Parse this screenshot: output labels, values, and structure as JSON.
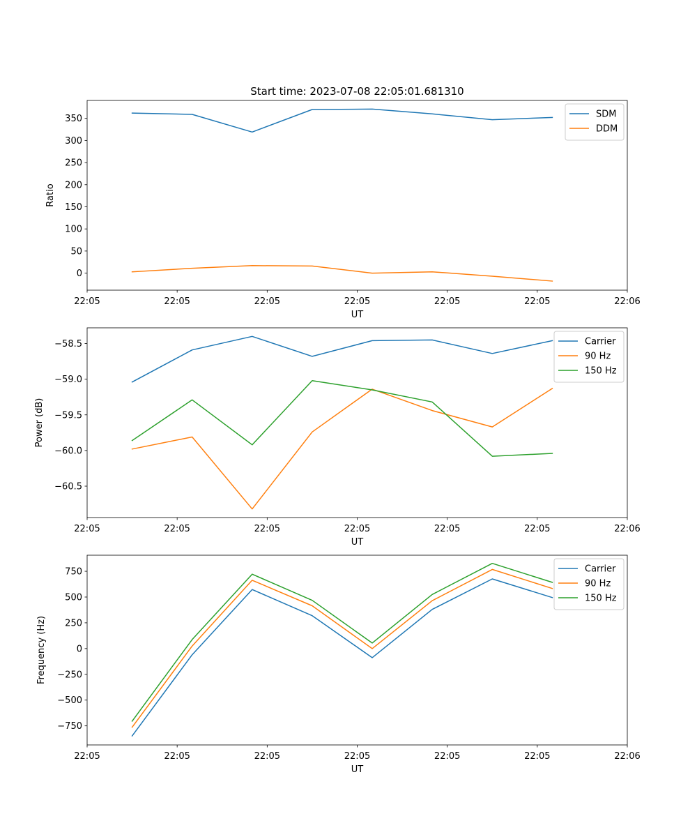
{
  "figure": {
    "title": "Start time: 2023-07-08 22:05:01.681310"
  },
  "chart_data": [
    {
      "type": "line",
      "title": "Start time: 2023-07-08 22:05:01.681310",
      "xlabel": "UT",
      "ylabel": "Ratio",
      "x": [
        0,
        1,
        2,
        3,
        4,
        5,
        6,
        7
      ],
      "xlim": [
        -0.75,
        8.25
      ],
      "xticks": [
        -0.75,
        0.75,
        2.25,
        3.75,
        5.25,
        6.75,
        8.25
      ],
      "xtick_labels": [
        "22:05",
        "22:05",
        "22:05",
        "22:05",
        "22:05",
        "22:05",
        "22:06"
      ],
      "ylim": [
        -38.5,
        390.5
      ],
      "yticks": [
        0,
        50,
        100,
        150,
        200,
        250,
        300,
        350
      ],
      "ytick_labels": [
        "0",
        "50",
        "100",
        "150",
        "200",
        "250",
        "300",
        "350"
      ],
      "legend_loc": "upper right",
      "series": [
        {
          "name": "SDM",
          "color": "#1f77b4",
          "values": [
            362,
            359,
            319,
            370,
            371,
            360,
            347,
            352
          ]
        },
        {
          "name": "DDM",
          "color": "#ff7f0e",
          "values": [
            3,
            11,
            17,
            16,
            0,
            3,
            -7,
            -18
          ]
        }
      ]
    },
    {
      "type": "line",
      "xlabel": "UT",
      "ylabel": "Power (dB)",
      "x": [
        0,
        1,
        2,
        3,
        4,
        5,
        6,
        7
      ],
      "xlim": [
        -0.75,
        8.25
      ],
      "xticks": [
        -0.75,
        0.75,
        2.25,
        3.75,
        5.25,
        6.75,
        8.25
      ],
      "xtick_labels": [
        "22:05",
        "22:05",
        "22:05",
        "22:05",
        "22:05",
        "22:05",
        "22:06"
      ],
      "ylim": [
        -60.94,
        -58.28
      ],
      "yticks": [
        -60.5,
        -60.0,
        -59.5,
        -59.0,
        -58.5
      ],
      "ytick_labels": [
        "−60.5",
        "−60.0",
        "−59.5",
        "−59.0",
        "−58.5"
      ],
      "legend_loc": "upper right",
      "series": [
        {
          "name": "Carrier",
          "color": "#1f77b4",
          "values": [
            -59.04,
            -58.59,
            -58.4,
            -58.68,
            -58.46,
            -58.45,
            -58.64,
            -58.46
          ]
        },
        {
          "name": "90 Hz",
          "color": "#ff7f0e",
          "values": [
            -59.98,
            -59.81,
            -60.82,
            -59.74,
            -59.14,
            -59.44,
            -59.67,
            -59.13
          ]
        },
        {
          "name": "150 Hz",
          "color": "#2ca02c",
          "values": [
            -59.86,
            -59.29,
            -59.92,
            -59.02,
            -59.15,
            -59.32,
            -60.08,
            -60.04
          ]
        }
      ]
    },
    {
      "type": "line",
      "xlabel": "UT",
      "ylabel": "Frequency (Hz)",
      "x": [
        0,
        1,
        2,
        3,
        4,
        5,
        6,
        7
      ],
      "xlim": [
        -0.75,
        8.25
      ],
      "xticks": [
        -0.75,
        0.75,
        2.25,
        3.75,
        5.25,
        6.75,
        8.25
      ],
      "xtick_labels": [
        "22:05",
        "22:05",
        "22:05",
        "22:05",
        "22:05",
        "22:05",
        "22:06"
      ],
      "ylim": [
        -935,
        906
      ],
      "yticks": [
        -750,
        -500,
        -250,
        0,
        250,
        500,
        750
      ],
      "ytick_labels": [
        "−750",
        "−500",
        "−250",
        "0",
        "250",
        "500",
        "750"
      ],
      "legend_loc": "upper right",
      "series": [
        {
          "name": "Carrier",
          "color": "#1f77b4",
          "values": [
            -848,
            -60,
            573,
            319,
            -88,
            380,
            676,
            495
          ]
        },
        {
          "name": "90 Hz",
          "color": "#ff7f0e",
          "values": [
            -763,
            25,
            663,
            415,
            0,
            465,
            768,
            583
          ]
        },
        {
          "name": "150 Hz",
          "color": "#2ca02c",
          "values": [
            -704,
            88,
            722,
            468,
            54,
            525,
            827,
            643
          ]
        }
      ]
    }
  ]
}
